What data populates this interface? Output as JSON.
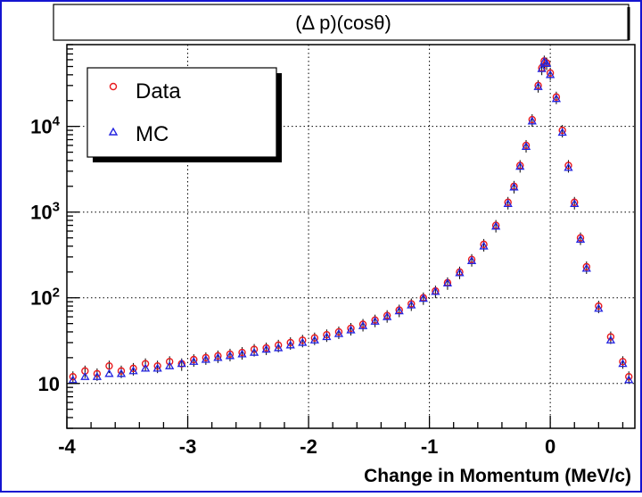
{
  "colors": {
    "frame_blue": "#1515d0",
    "data_red": "#e8191c",
    "mc_blue": "#2323e0",
    "error_black": "#000000",
    "grid_black": "#000000"
  },
  "chart_data": {
    "type": "scatter",
    "title": "(Δ p)(cosθ)",
    "xlabel": "Change in Momentum (MeV/c)",
    "ylabel": "",
    "xlim": [
      -4,
      0.7
    ],
    "ylim": [
      3,
      90000
    ],
    "yscale": "log",
    "grid": true,
    "legend_position": "top-left",
    "x_ticks": [
      -4,
      -3,
      -2,
      -1,
      0
    ],
    "x_tick_labels": [
      "-4",
      "-3",
      "-2",
      "-1",
      "0"
    ],
    "y_ticks": [
      10,
      100,
      1000,
      10000
    ],
    "y_tick_labels": [
      {
        "base": "10",
        "exp": ""
      },
      {
        "base": "10",
        "exp": "2"
      },
      {
        "base": "10",
        "exp": "3"
      },
      {
        "base": "10",
        "exp": "4"
      }
    ],
    "series": [
      {
        "name": "Data",
        "marker": "circle",
        "color": "#e8191c",
        "x": [
          -3.95,
          -3.85,
          -3.75,
          -3.65,
          -3.55,
          -3.45,
          -3.35,
          -3.25,
          -3.15,
          -3.05,
          -2.95,
          -2.85,
          -2.75,
          -2.65,
          -2.55,
          -2.45,
          -2.35,
          -2.25,
          -2.15,
          -2.05,
          -1.95,
          -1.85,
          -1.75,
          -1.65,
          -1.55,
          -1.45,
          -1.35,
          -1.25,
          -1.15,
          -1.05,
          -0.95,
          -0.85,
          -0.75,
          -0.65,
          -0.55,
          -0.45,
          -0.35,
          -0.3,
          -0.25,
          -0.2,
          -0.15,
          -0.1,
          -0.07,
          -0.05,
          -0.03,
          0.0,
          0.05,
          0.1,
          0.15,
          0.2,
          0.25,
          0.3,
          0.4,
          0.5,
          0.6,
          0.65
        ],
        "y": [
          12,
          14,
          13,
          16,
          14,
          15,
          17,
          16,
          18,
          17,
          19,
          20,
          21,
          22,
          23,
          25,
          26,
          28,
          30,
          32,
          34,
          37,
          40,
          44,
          49,
          55,
          62,
          72,
          85,
          100,
          120,
          150,
          200,
          280,
          420,
          700,
          1300,
          2000,
          3500,
          6000,
          12000,
          30000,
          48000,
          58000,
          55000,
          42000,
          22000,
          9000,
          3500,
          1300,
          500,
          230,
          80,
          35,
          18,
          12
        ]
      },
      {
        "name": "MC",
        "marker": "triangle",
        "color": "#2323e0",
        "x": [
          -3.95,
          -3.85,
          -3.75,
          -3.65,
          -3.55,
          -3.45,
          -3.35,
          -3.25,
          -3.15,
          -3.05,
          -2.95,
          -2.85,
          -2.75,
          -2.65,
          -2.55,
          -2.45,
          -2.35,
          -2.25,
          -2.15,
          -2.05,
          -1.95,
          -1.85,
          -1.75,
          -1.65,
          -1.55,
          -1.45,
          -1.35,
          -1.25,
          -1.15,
          -1.05,
          -0.95,
          -0.85,
          -0.75,
          -0.65,
          -0.55,
          -0.45,
          -0.35,
          -0.3,
          -0.25,
          -0.2,
          -0.15,
          -0.1,
          -0.07,
          -0.05,
          -0.03,
          0.0,
          0.05,
          0.1,
          0.15,
          0.2,
          0.25,
          0.3,
          0.4,
          0.5,
          0.6,
          0.65
        ],
        "y": [
          11,
          12,
          12,
          13,
          13,
          14,
          15,
          15,
          16,
          17,
          18,
          19,
          20,
          21,
          22,
          23,
          25,
          26,
          28,
          30,
          32,
          35,
          38,
          42,
          47,
          53,
          60,
          70,
          82,
          98,
          118,
          148,
          195,
          270,
          400,
          680,
          1250,
          1950,
          3400,
          5800,
          11500,
          29000,
          47000,
          57000,
          54000,
          40000,
          21000,
          8500,
          3300,
          1250,
          480,
          220,
          75,
          32,
          17,
          11
        ]
      }
    ]
  }
}
